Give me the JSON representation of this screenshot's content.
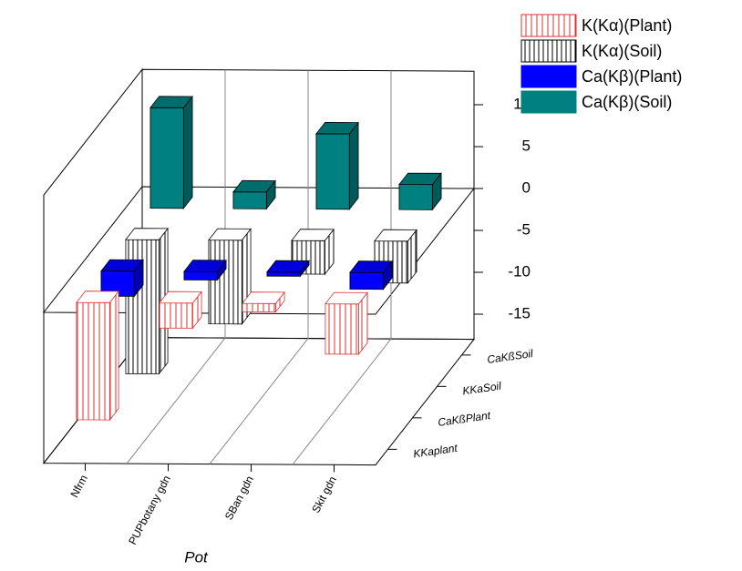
{
  "chart_data": {
    "type": "bar3d",
    "x_label": "Pot",
    "categories": [
      "Nfrm",
      "PUPbotany gdn",
      "SBan gdn",
      "Skit gdn"
    ],
    "depth_labels": [
      "KKaplant",
      "CaKßPlant",
      "KKaSoil",
      "CaKßSoil"
    ],
    "series": [
      {
        "name": "K(Kα)(Plant)",
        "color": "#e03030",
        "hatch": true,
        "values": [
          -14,
          -3,
          -1,
          -6
        ]
      },
      {
        "name": "Ca(Kβ)(Plant)",
        "color": "#0000ff",
        "hatch": false,
        "values": [
          -3,
          -1,
          -0.5,
          -2
        ]
      },
      {
        "name": "K(Kα)(Soil)",
        "color": "#000000",
        "hatch": true,
        "values": [
          -16,
          -10,
          -4,
          -5
        ]
      },
      {
        "name": "Ca(Kβ)(Soil)",
        "color": "#008080",
        "hatch": false,
        "values": [
          12,
          2,
          9,
          3
        ]
      }
    ],
    "legend_order": [
      0,
      2,
      1,
      3
    ],
    "zlim": [
      -18,
      14
    ],
    "zticks": [
      10,
      5,
      0,
      -5,
      -10,
      -15
    ]
  }
}
